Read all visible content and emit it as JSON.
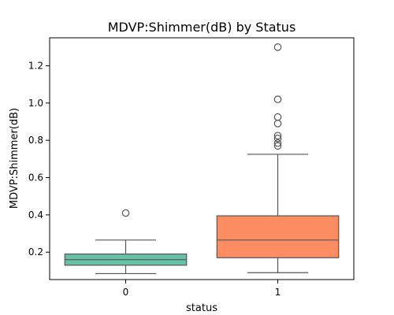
{
  "chart_data": {
    "type": "box",
    "title": "MDVP:Shimmer(dB) by Status",
    "xlabel": "status",
    "ylabel": "MDVP:Shimmer(dB)",
    "categories": [
      "0",
      "1"
    ],
    "ylim": [
      0.053,
      1.35
    ],
    "yticks": [
      0.2,
      0.4,
      0.6,
      0.8,
      1.0,
      1.2
    ],
    "ytick_labels": [
      "0.2",
      "0.4",
      "0.6",
      "0.8",
      "1.0",
      "1.2"
    ],
    "grid": false,
    "legend": "none",
    "boxes": [
      {
        "category": "0",
        "color": "#66c2a5",
        "whisker_low": 0.085,
        "q1": 0.13,
        "median": 0.16,
        "q3": 0.19,
        "whisker_high": 0.265,
        "outliers": [
          0.41
        ]
      },
      {
        "category": "1",
        "color": "#fc8d62",
        "whisker_low": 0.09,
        "q1": 0.17,
        "median": 0.265,
        "q3": 0.395,
        "whisker_high": 0.725,
        "outliers": [
          0.77,
          0.785,
          0.81,
          0.825,
          0.89,
          0.925,
          1.02,
          1.3
        ]
      }
    ]
  }
}
